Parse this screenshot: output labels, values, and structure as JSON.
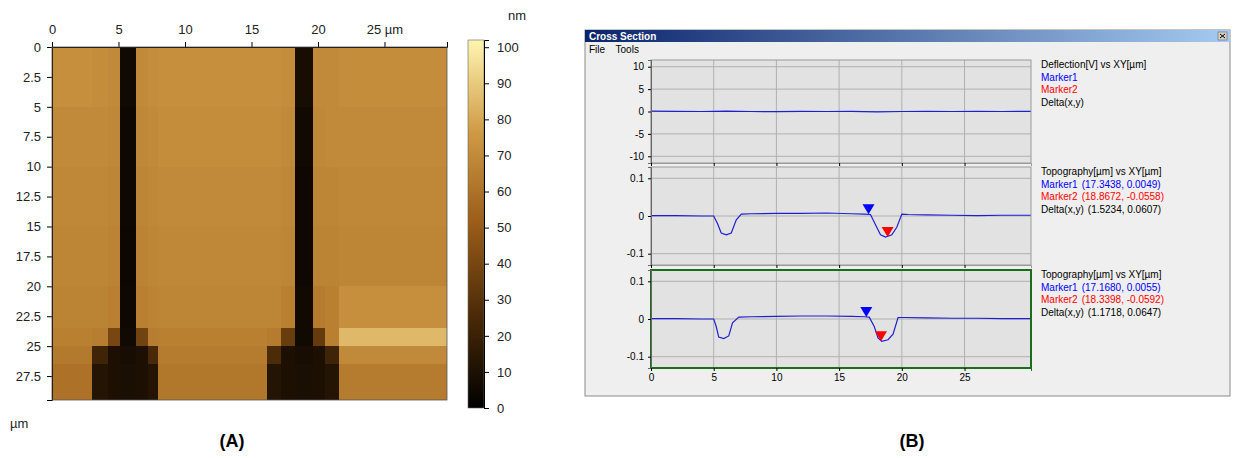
{
  "chart_data": [
    {
      "type": "heatmap",
      "panel": "(A)",
      "y_label": "µm",
      "xlim": [
        0,
        29.7
      ],
      "ylim": [
        0,
        29.5
      ],
      "xticks": [
        0,
        5,
        10,
        15,
        20,
        {
          "value": 25,
          "label": "25 µm"
        }
      ],
      "yticks": [
        0,
        2.5,
        5,
        7.5,
        10,
        12.5,
        15,
        17.5,
        20,
        22.5,
        25,
        27.5
      ],
      "x_edges": [
        0,
        3,
        4.2,
        5.1,
        6.3,
        7.2,
        8,
        16.2,
        17.2,
        18.3,
        19.6,
        20.5,
        21.6,
        29.7
      ],
      "y_edges": [
        0,
        5,
        10,
        15,
        20,
        23.5,
        25,
        26.5,
        29.5
      ],
      "cells": [
        [
          72,
          71,
          70,
          6,
          70,
          71,
          72,
          72,
          71,
          8,
          70,
          70,
          71
        ],
        [
          70,
          70,
          69,
          5,
          69,
          70,
          71,
          71,
          70,
          6,
          69,
          70,
          70
        ],
        [
          69,
          69,
          68,
          5,
          68,
          69,
          70,
          70,
          69,
          5,
          68,
          68,
          69
        ],
        [
          68,
          68,
          67,
          4,
          67,
          68,
          69,
          69,
          68,
          5,
          67,
          67,
          68
        ],
        [
          67,
          67,
          66,
          5,
          66,
          67,
          68,
          68,
          66,
          6,
          64,
          66,
          72
        ],
        [
          66,
          65,
          40,
          6,
          38,
          65,
          66,
          64,
          35,
          6,
          34,
          66,
          85
        ],
        [
          63,
          22,
          10,
          8,
          10,
          25,
          64,
          26,
          10,
          8,
          10,
          22,
          70
        ],
        [
          60,
          12,
          10,
          9,
          10,
          12,
          62,
          12,
          10,
          9,
          10,
          12,
          64
        ]
      ],
      "colorbar": {
        "label": "nm",
        "range": [
          0,
          102
        ],
        "ticks": [
          0,
          10,
          20,
          30,
          40,
          50,
          60,
          70,
          80,
          90,
          100
        ]
      }
    },
    {
      "type": "line",
      "title": "Deflection[V] vs XY[µm]",
      "xlim": [
        0,
        30.3
      ],
      "ylim": [
        -11.5,
        11.5
      ],
      "xticks": [
        0,
        5,
        10,
        15,
        20,
        25
      ],
      "yticks": [
        10,
        5,
        0,
        -5,
        -10
      ],
      "grid": true,
      "tick_labels": "y",
      "series": [
        {
          "color": "#1f1fd0",
          "x": [
            0,
            2,
            4,
            6,
            8,
            10,
            12,
            14,
            16,
            18,
            20,
            22,
            24,
            26,
            28,
            30.3
          ],
          "values": [
            0.1,
            0.05,
            0,
            0.1,
            0,
            -0.05,
            0.05,
            0,
            0.05,
            -0.1,
            0,
            0.05,
            0,
            0.05,
            0,
            0.05
          ]
        }
      ],
      "cursors": [
        {
          "name": "Marker1",
          "color": "#0000ff"
        },
        {
          "name": "Marker2",
          "color": "#ff0000"
        }
      ],
      "delta": {
        "name": "Delta(x,y)",
        "color": "#000000"
      }
    },
    {
      "type": "line",
      "title": "Topography[µm] vs XY[µm]",
      "xlim": [
        0,
        30.3
      ],
      "ylim": [
        -0.13,
        0.13
      ],
      "xticks": [
        0,
        5,
        10,
        15,
        20,
        25
      ],
      "yticks": [
        0.1,
        0,
        -0.1
      ],
      "grid": true,
      "tick_labels": "y",
      "series": [
        {
          "color": "#1f1fd0",
          "x": [
            0,
            2,
            4,
            5,
            5.3,
            5.6,
            6.0,
            6.4,
            6.8,
            7.2,
            8,
            10,
            12,
            14,
            16,
            17,
            17.5,
            18.0,
            18.3,
            18.7,
            19.2,
            19.6,
            20.0,
            20.5,
            22,
            24,
            26,
            28,
            30.3
          ],
          "values": [
            0.001,
            0.001,
            0.0,
            0.0,
            -0.02,
            -0.045,
            -0.05,
            -0.045,
            -0.01,
            0.005,
            0.006,
            0.007,
            0.007,
            0.008,
            0.006,
            0.005,
            0.004,
            -0.03,
            -0.05,
            -0.056,
            -0.05,
            -0.03,
            0.005,
            0.004,
            0.003,
            0.002,
            0.001,
            0.002,
            0.002
          ]
        }
      ],
      "cursors": [
        {
          "name": "Marker1",
          "color": "#0000ff",
          "x": 17.3438,
          "y": 0.0049,
          "label": "(17.3438, 0.0049)"
        },
        {
          "name": "Marker2",
          "color": "#ff0000",
          "x": 18.8672,
          "y": -0.0558,
          "label": "(18.8672, -0.0558)"
        }
      ],
      "delta": {
        "name": "Delta(x,y)",
        "color": "#000000",
        "label": "(1.5234, 0.0607)"
      }
    },
    {
      "type": "line",
      "title": "Topography[µm] vs XY[µm]",
      "xlim": [
        0,
        30.3
      ],
      "ylim": [
        -0.13,
        0.13
      ],
      "xticks": [
        0,
        5,
        10,
        15,
        20,
        25
      ],
      "yticks": [
        0.1,
        0,
        -0.1
      ],
      "grid": true,
      "tick_labels": true,
      "series": [
        {
          "color": "#1f1fd0",
          "x": [
            0,
            2,
            4,
            5,
            5.2,
            5.4,
            5.8,
            6.2,
            6.5,
            7,
            8,
            10,
            12,
            14,
            16,
            17,
            17.4,
            17.8,
            18.1,
            18.4,
            18.9,
            19.3,
            19.7,
            20.2,
            22,
            24,
            26,
            28,
            30.3
          ],
          "values": [
            0.001,
            0.001,
            0.0,
            0.0,
            -0.02,
            -0.048,
            -0.052,
            -0.045,
            -0.01,
            0.005,
            0.006,
            0.007,
            0.008,
            0.008,
            0.007,
            0.006,
            0.005,
            -0.02,
            -0.05,
            -0.059,
            -0.055,
            -0.04,
            0.004,
            0.004,
            0.003,
            0.002,
            0.002,
            0.001,
            0.001
          ]
        }
      ],
      "cursors": [
        {
          "name": "Marker1",
          "color": "#0000ff",
          "x": 17.168,
          "y": 0.0055,
          "label": "(17.1680, 0.0055)"
        },
        {
          "name": "Marker2",
          "color": "#ff0000",
          "x": 18.3398,
          "y": -0.0592,
          "label": "(18.3398, -0.0592)"
        }
      ],
      "delta": {
        "name": "Delta(x,y)",
        "color": "#000000",
        "label": "(1.1718, 0.0647)"
      }
    }
  ],
  "window": {
    "title": "Cross Section",
    "menu": [
      "File",
      "Tools"
    ],
    "panel": "(B)"
  }
}
